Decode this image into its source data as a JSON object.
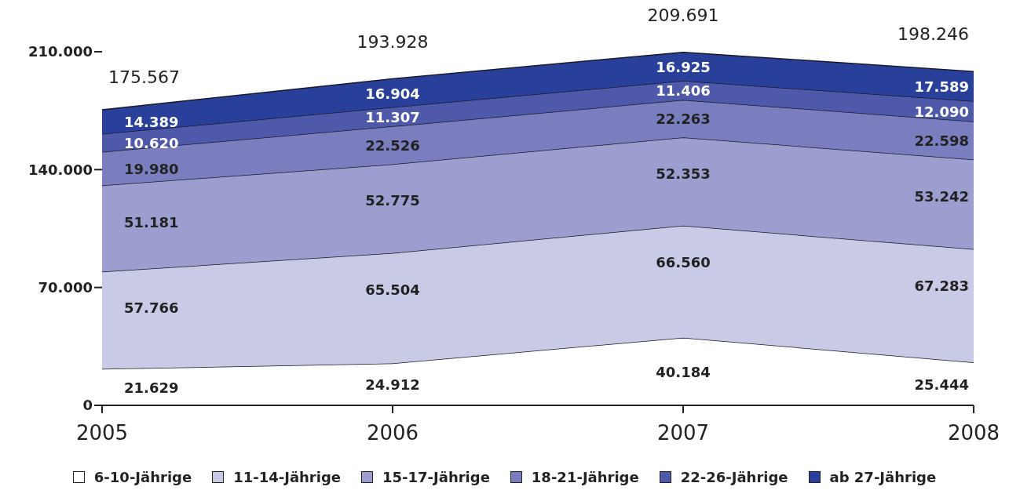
{
  "chart_data": {
    "type": "area",
    "stacked": true,
    "x": [
      2005,
      2006,
      2007,
      2008
    ],
    "xlim": [
      2005,
      2008
    ],
    "xticks": [
      2005,
      2006,
      2007,
      2008
    ],
    "ylim": [
      0,
      210000
    ],
    "yticks": [
      0,
      {
        "value": 70000,
        "label": "70.000"
      },
      {
        "value": 140000,
        "label": "140.000"
      },
      {
        "value": 210000,
        "label": "210.000"
      }
    ],
    "grid": false,
    "legend": "bottom",
    "series": [
      {
        "name": "6-10-Jährige",
        "color": "#ffffff",
        "values": [
          21629,
          24912,
          40184,
          25444
        ],
        "value_labels": [
          "21.629",
          "24.912",
          "40.184",
          "25.444"
        ]
      },
      {
        "name": "11-14-Jährige",
        "color": "#c9cae6",
        "values": [
          57766,
          65504,
          66560,
          67283
        ],
        "value_labels": [
          "57.766",
          "65.504",
          "66.560",
          "67.283"
        ]
      },
      {
        "name": "15-17-Jährige",
        "color": "#9c9ecf",
        "values": [
          51181,
          52775,
          52353,
          53242
        ],
        "value_labels": [
          "51.181",
          "52.775",
          "52.353",
          "53.242"
        ]
      },
      {
        "name": "18-21-Jährige",
        "color": "#7a7ebf",
        "values": [
          19980,
          22526,
          22263,
          22598
        ],
        "value_labels": [
          "19.980",
          "22.526",
          "22.263",
          "22.598"
        ]
      },
      {
        "name": "22-26-Jährige",
        "color": "#4f59a9",
        "values": [
          10620,
          11307,
          11406,
          12090
        ],
        "value_labels": [
          "10.620",
          "11.307",
          "11.406",
          "12.090"
        ]
      },
      {
        "name": "ab 27-Jährige",
        "color": "#28409a",
        "values": [
          14389,
          16904,
          16925,
          17589
        ],
        "value_labels": [
          "14.389",
          "16.904",
          "16.925",
          "17.589"
        ]
      }
    ],
    "totals": [
      "175.567",
      "193.928",
      "209.691",
      "198.246"
    ]
  }
}
